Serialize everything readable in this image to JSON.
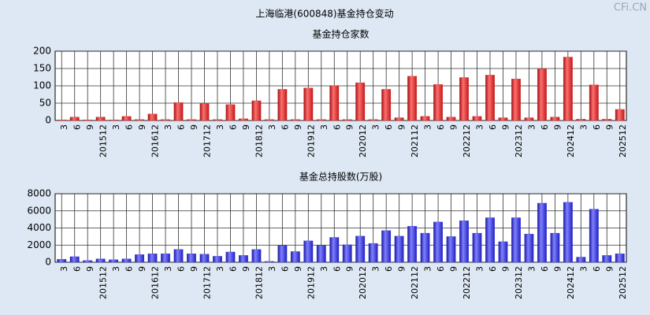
{
  "title": "上海临港(600848)基金持仓变动",
  "watermark": "CFi.CN",
  "chart_data": [
    {
      "type": "bar",
      "title": "基金持仓家数",
      "categories": [
        "3",
        "6",
        "9",
        "201512",
        "3",
        "6",
        "9",
        "201612",
        "3",
        "6",
        "9",
        "201712",
        "3",
        "6",
        "9",
        "201812",
        "3",
        "6",
        "9",
        "201912",
        "3",
        "6",
        "9",
        "202012",
        "3",
        "6",
        "9",
        "202112",
        "3",
        "6",
        "9",
        "202212",
        "3",
        "6",
        "9",
        "202312",
        "3",
        "6",
        "9",
        "202412",
        "3",
        "6",
        "9",
        "202512"
      ],
      "values": [
        2,
        10,
        2,
        10,
        2,
        12,
        3,
        19,
        3,
        52,
        3,
        49,
        3,
        46,
        5,
        57,
        3,
        90,
        3,
        94,
        3,
        101,
        3,
        109,
        3,
        90,
        8,
        128,
        12,
        104,
        10,
        124,
        12,
        131,
        8,
        120,
        8,
        149,
        10,
        183,
        4,
        103,
        4,
        32
      ],
      "color": "#e03030",
      "ylim": [
        0,
        200
      ],
      "yticks": [
        0,
        50,
        100,
        150,
        200
      ],
      "grid": true
    },
    {
      "type": "bar",
      "title": "基金总持股数(万股)",
      "categories": [
        "3",
        "6",
        "9",
        "201512",
        "3",
        "6",
        "9",
        "201612",
        "3",
        "6",
        "9",
        "201712",
        "3",
        "6",
        "9",
        "201812",
        "3",
        "6",
        "9",
        "201912",
        "3",
        "6",
        "9",
        "202012",
        "3",
        "6",
        "9",
        "202112",
        "3",
        "6",
        "9",
        "202212",
        "3",
        "6",
        "9",
        "202312",
        "3",
        "6",
        "9",
        "202412",
        "3",
        "6",
        "9",
        "202512"
      ],
      "values": [
        350,
        650,
        200,
        400,
        300,
        400,
        900,
        1000,
        1000,
        1500,
        1000,
        950,
        700,
        1200,
        800,
        1500,
        100,
        1950,
        1250,
        2500,
        1950,
        2900,
        2050,
        3050,
        2200,
        3700,
        3050,
        4200,
        3400,
        4700,
        3000,
        4850,
        3400,
        5200,
        2400,
        5200,
        3300,
        6900,
        3400,
        7000,
        600,
        6200,
        800,
        1000
      ],
      "color": "#3a3ae0",
      "ylim": [
        0,
        8000
      ],
      "yticks": [
        0,
        2000,
        4000,
        6000,
        8000
      ],
      "grid": true
    }
  ]
}
